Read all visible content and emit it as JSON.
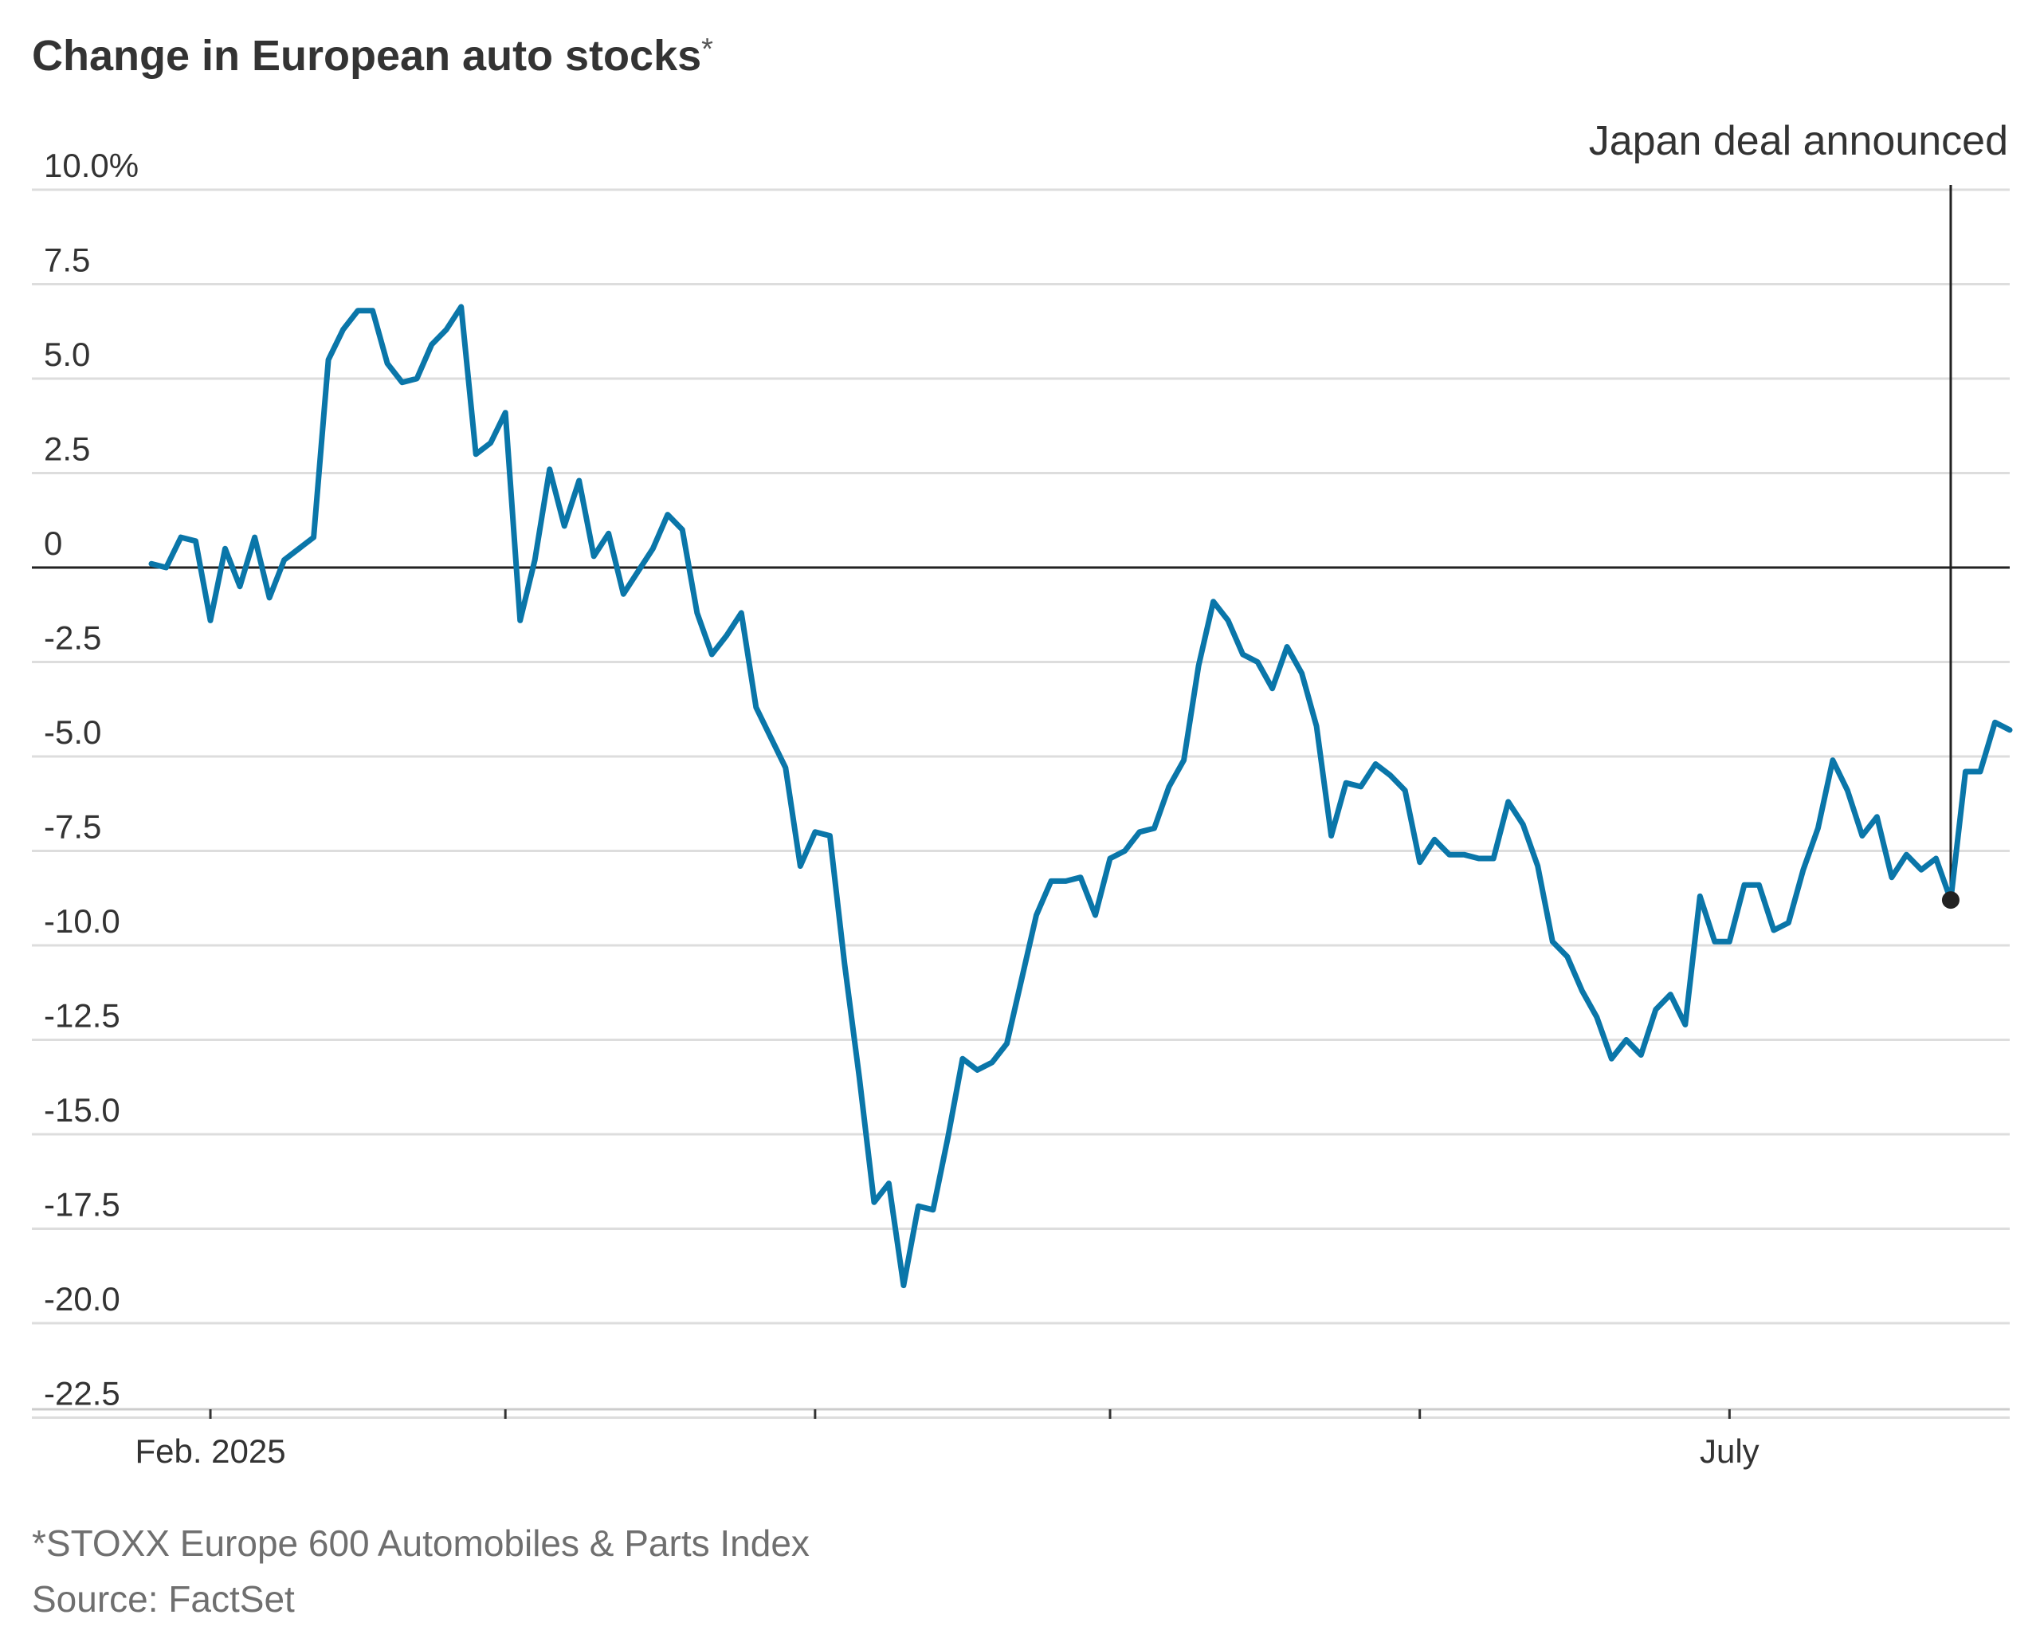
{
  "chart_data": {
    "type": "line",
    "title": "Change in European auto stocks",
    "title_marker": "*",
    "ylabel": "",
    "xlabel": "",
    "ylim": [
      -24.0,
      10.0
    ],
    "y_ticks": [
      10.0,
      7.5,
      5.0,
      2.5,
      0,
      -2.5,
      -5.0,
      -7.5,
      -10.0,
      -12.5,
      -15.0,
      -17.5,
      -20.0,
      -22.5
    ],
    "y_tick_labels": [
      "10.0%",
      "7.5",
      "5.0",
      "2.5",
      "0",
      "-2.5",
      "-5.0",
      "-7.5",
      "-10.0",
      "-12.5",
      "-15.0",
      "-17.5",
      "-20.0",
      "-22.5"
    ],
    "x_ticks": [
      {
        "index": 4,
        "label": "Feb. 2025"
      },
      {
        "index": 24,
        "label": ""
      },
      {
        "index": 45,
        "label": ""
      },
      {
        "index": 65,
        "label": ""
      },
      {
        "index": 86,
        "label": ""
      },
      {
        "index": 107,
        "label": "July"
      }
    ],
    "series": [
      {
        "name": "STOXX Europe 600 Automobiles & Parts Index",
        "color": "#0a76a9",
        "values": [
          0.1,
          0.0,
          0.8,
          0.7,
          -1.4,
          0.5,
          -0.5,
          0.8,
          -0.8,
          0.2,
          0.5,
          0.8,
          5.5,
          6.3,
          6.8,
          6.8,
          5.4,
          4.9,
          5.0,
          5.9,
          6.3,
          6.9,
          3.0,
          3.3,
          4.1,
          -1.4,
          0.2,
          2.6,
          1.1,
          2.3,
          0.3,
          0.9,
          -0.7,
          -0.1,
          0.5,
          1.4,
          1.0,
          -1.2,
          -2.3,
          -1.8,
          -1.2,
          -3.7,
          -4.5,
          -5.3,
          -7.9,
          -7.0,
          -7.1,
          -10.5,
          -13.5,
          -16.8,
          -16.3,
          -19.0,
          -16.9,
          -17.0,
          -15.1,
          -13.0,
          -13.3,
          -13.1,
          -12.6,
          -10.9,
          -9.2,
          -8.3,
          -8.3,
          -8.2,
          -9.2,
          -7.7,
          -7.5,
          -7.0,
          -6.9,
          -5.8,
          -5.1,
          -2.6,
          -0.9,
          -1.4,
          -2.3,
          -2.5,
          -3.2,
          -2.1,
          -2.8,
          -4.2,
          -7.1,
          -5.7,
          -5.8,
          -5.2,
          -5.5,
          -5.9,
          -7.8,
          -7.2,
          -7.6,
          -7.6,
          -7.7,
          -7.7,
          -6.2,
          -6.8,
          -7.9,
          -9.9,
          -10.3,
          -11.2,
          -11.9,
          -13.0,
          -12.5,
          -12.9,
          -11.7,
          -11.3,
          -12.1,
          -8.7,
          -9.9,
          -9.9,
          -8.4,
          -8.4,
          -9.6,
          -9.4,
          -8.0,
          -6.9,
          -5.1,
          -5.9,
          -7.1,
          -6.6,
          -8.2,
          -7.6,
          -8.0,
          -7.7,
          -8.8,
          -5.4,
          -5.4,
          -4.1,
          -4.3
        ]
      }
    ],
    "annotation": {
      "text": "Japan deal announced",
      "index": 122,
      "value": -8.8
    },
    "footnote": "*STOXX Europe 600 Automobiles & Parts Index",
    "source": "Source: FactSet"
  }
}
